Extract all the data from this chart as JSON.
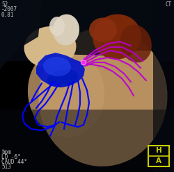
{
  "bg_color": "#000000",
  "overlay_text_color": "#c8c8c8",
  "top_left_lines": [
    "52",
    "-2007",
    "0.81"
  ],
  "top_right_text": "CT",
  "bottom_left_lines": [
    "bpm",
    "LO -6°",
    "CAUD 44°",
    "513"
  ],
  "hf_box_color": "#cccc00",
  "blue_vessel_color": "#0000ff",
  "purple_vessel_color": "#bb00cc",
  "pink_dot_color": "#ff44ff",
  "figsize": [
    2.5,
    2.48
  ],
  "dpi": 100
}
